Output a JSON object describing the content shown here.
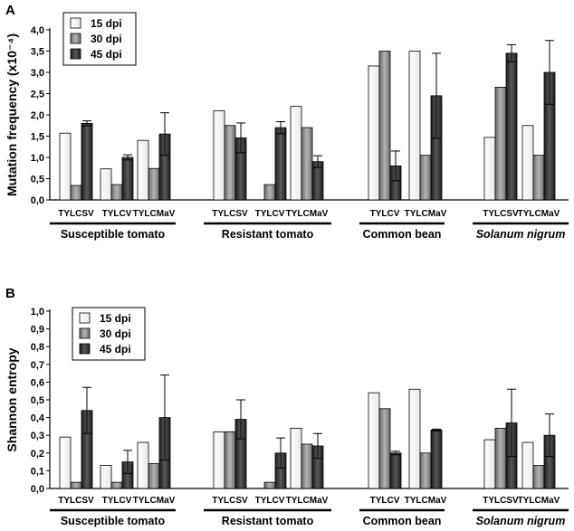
{
  "chart_data": [
    {
      "panel": "A",
      "type": "bar",
      "ylabel": "Mutation frequency (x10⁻⁴)",
      "ylim": [
        0,
        4
      ],
      "ytick_labels": [
        "0,0",
        "0,5",
        "1,0",
        "1,5",
        "2,0",
        "2,5",
        "3,0",
        "3,5",
        "4,0"
      ],
      "legend": [
        "15 dpi",
        "30 dpi",
        "45 dpi"
      ],
      "legend_position": "top-left",
      "groups": [
        {
          "name": "Susceptible tomato",
          "italic": false,
          "viruses": [
            {
              "label": "TYLCSV",
              "values": [
                1.57,
                0.34,
                1.8
              ],
              "errors": [
                null,
                null,
                0.06
              ]
            },
            {
              "label": "TYLCV",
              "values": [
                0.73,
                0.36,
                1.0
              ],
              "errors": [
                null,
                null,
                0.06
              ]
            },
            {
              "label": "TYLCMaV",
              "values": [
                1.4,
                0.74,
                1.55
              ],
              "errors": [
                null,
                null,
                0.5
              ]
            }
          ]
        },
        {
          "name": "Resistant tomato",
          "italic": false,
          "viruses": [
            {
              "label": "TYLCSV",
              "values": [
                2.1,
                1.75,
                1.46
              ],
              "errors": [
                null,
                null,
                0.35
              ]
            },
            {
              "label": "TYLCV",
              "values": [
                null,
                0.36,
                1.7
              ],
              "errors": [
                null,
                null,
                0.14
              ]
            },
            {
              "label": "TYLCMaV",
              "values": [
                2.2,
                1.7,
                0.9
              ],
              "errors": [
                null,
                null,
                0.14
              ]
            }
          ]
        },
        {
          "name": "Common bean",
          "italic": false,
          "viruses": [
            {
              "label": "TYLCV",
              "values": [
                3.15,
                3.5,
                0.8
              ],
              "errors": [
                null,
                null,
                0.35
              ]
            },
            {
              "label": "TYLCMaV",
              "values": [
                3.5,
                1.05,
                2.45
              ],
              "errors": [
                null,
                null,
                1.0
              ]
            }
          ]
        },
        {
          "name": "Solanum nigrum",
          "italic": true,
          "viruses": [
            {
              "label": "TYLCSV",
              "values": [
                1.47,
                2.65,
                3.45
              ],
              "errors": [
                null,
                null,
                0.2
              ]
            },
            {
              "label": "TYLCMaV",
              "values": [
                1.75,
                1.05,
                3.0
              ],
              "errors": [
                null,
                null,
                0.75
              ]
            }
          ]
        }
      ]
    },
    {
      "panel": "B",
      "type": "bar",
      "ylabel": "Shannon entropy",
      "ylim": [
        0,
        1
      ],
      "ytick_labels": [
        "0,0",
        "0,1",
        "0,2",
        "0,3",
        "0,4",
        "0,5",
        "0,6",
        "0,7",
        "0,8",
        "0,9",
        "1,0"
      ],
      "legend": [
        "15 dpi",
        "30 dpi",
        "45 dpi"
      ],
      "legend_position": "top-left",
      "groups": [
        {
          "name": "Susceptible tomato",
          "italic": false,
          "viruses": [
            {
              "label": "TYLCSV",
              "values": [
                0.29,
                0.035,
                0.44
              ],
              "errors": [
                null,
                null,
                0.13
              ]
            },
            {
              "label": "TYLCV",
              "values": [
                0.13,
                0.035,
                0.15
              ],
              "errors": [
                null,
                null,
                0.065
              ]
            },
            {
              "label": "TYLCMaV",
              "values": [
                0.26,
                0.14,
                0.4
              ],
              "errors": [
                null,
                null,
                0.24
              ]
            }
          ]
        },
        {
          "name": "Resistant tomato",
          "italic": false,
          "viruses": [
            {
              "label": "TYLCSV",
              "values": [
                0.32,
                0.32,
                0.39
              ],
              "errors": [
                null,
                null,
                0.11
              ]
            },
            {
              "label": "TYLCV",
              "values": [
                null,
                0.035,
                0.2
              ],
              "errors": [
                null,
                null,
                0.085
              ]
            },
            {
              "label": "TYLCMaV",
              "values": [
                0.34,
                0.25,
                0.24
              ],
              "errors": [
                null,
                null,
                0.07
              ]
            }
          ]
        },
        {
          "name": "Common bean",
          "italic": false,
          "viruses": [
            {
              "label": "TYLCV",
              "values": [
                0.54,
                0.45,
                0.2
              ],
              "errors": [
                null,
                null,
                0.01
              ]
            },
            {
              "label": "TYLCMaV",
              "values": [
                0.56,
                0.2,
                0.33
              ],
              "errors": [
                null,
                null,
                0.005
              ]
            }
          ]
        },
        {
          "name": "Solanum nigrum",
          "italic": true,
          "viruses": [
            {
              "label": "TYLCSV",
              "values": [
                0.275,
                0.34,
                0.37
              ],
              "errors": [
                null,
                null,
                0.19
              ]
            },
            {
              "label": "TYLCMaV",
              "values": [
                0.26,
                0.13,
                0.3
              ],
              "errors": [
                null,
                null,
                0.12
              ]
            }
          ]
        }
      ]
    }
  ]
}
